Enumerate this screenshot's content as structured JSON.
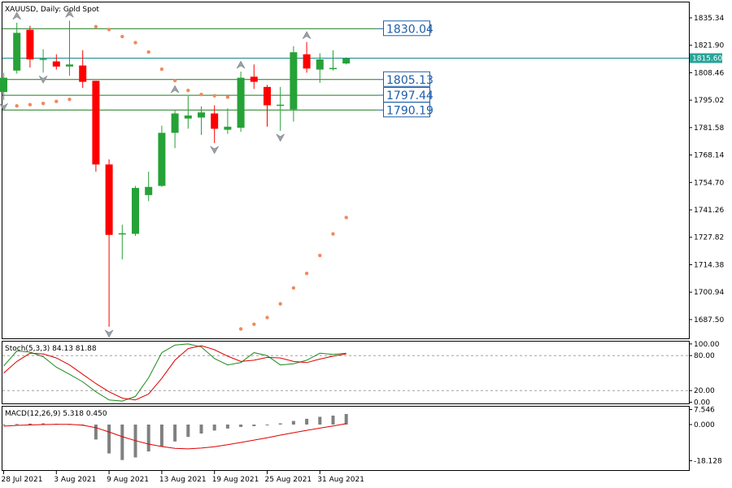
{
  "header": {
    "title": "XAUUSD, Daily:  Gold Spot"
  },
  "colors": {
    "bull": "#26a237",
    "bear": "#ff0000",
    "level_line": "#1e7a1e",
    "level_box": "#1f5fa8",
    "current_line": "#1a8a8a",
    "current_tag_bg": "#2aa39a",
    "sar": "#f08a5d",
    "fractal": "#9aa0a6",
    "stoch_main": "#1e8a1e",
    "stoch_signal": "#e00000",
    "macd_hist": "#808080",
    "macd_signal": "#e00000"
  },
  "levels": [
    {
      "label": "1830.04",
      "value": 1830.04
    },
    {
      "label": "1805.13",
      "value": 1805.13
    },
    {
      "label": "1797.44",
      "value": 1797.44
    },
    {
      "label": "1790.19",
      "value": 1790.19
    }
  ],
  "current_price": {
    "label": "1815.60",
    "value": 1815.6
  },
  "stoch": {
    "label": "Stoch(5,3,3) 84.13 81.88",
    "ticks": [
      "100.00",
      "80.00",
      "20.00",
      "0.00"
    ],
    "tick_values": [
      100,
      80,
      20,
      0
    ]
  },
  "macd": {
    "label": "MACD(12,26,9) 5.318 0.450",
    "ticks": [
      "7.546",
      "0.000",
      "-18.128"
    ],
    "tick_values": [
      7.546,
      0,
      -18.128
    ]
  },
  "chart_data": {
    "type": "candlestick",
    "symbol": "XAUUSD",
    "timeframe": "Daily",
    "y_ticks": [
      "1835.34",
      "1821.90",
      "1808.46",
      "1795.02",
      "1781.58",
      "1768.14",
      "1754.70",
      "1741.26",
      "1727.82",
      "1714.38",
      "1700.94",
      "1687.50"
    ],
    "y_tick_values": [
      1835.34,
      1821.9,
      1808.46,
      1795.02,
      1781.58,
      1768.14,
      1754.7,
      1741.26,
      1727.82,
      1714.38,
      1700.94,
      1687.5
    ],
    "ylim": [
      1678.3,
      1842.9
    ],
    "x_labels": [
      {
        "text": "28 Jul 2021",
        "index": 0
      },
      {
        "text": "3 Aug 2021",
        "index": 4
      },
      {
        "text": "9 Aug 2021",
        "index": 8
      },
      {
        "text": "13 Aug 2021",
        "index": 12
      },
      {
        "text": "19 Aug 2021",
        "index": 16
      },
      {
        "text": "25 Aug 2021",
        "index": 20
      },
      {
        "text": "31 Aug 2021",
        "index": 24
      }
    ],
    "candles": [
      {
        "o": 1799.0,
        "h": 1808.5,
        "l": 1795.0,
        "c": 1806.0
      },
      {
        "o": 1809.5,
        "h": 1833.0,
        "l": 1808.0,
        "c": 1828.0
      },
      {
        "o": 1829.5,
        "h": 1831.5,
        "l": 1811.0,
        "c": 1815.0
      },
      {
        "o": 1814.5,
        "h": 1820.0,
        "l": 1808.5,
        "c": 1815.0
      },
      {
        "o": 1814.0,
        "h": 1817.5,
        "l": 1810.0,
        "c": 1811.5
      },
      {
        "o": 1811.5,
        "h": 1834.0,
        "l": 1807.0,
        "c": 1812.5
      },
      {
        "o": 1812.0,
        "h": 1819.5,
        "l": 1801.0,
        "c": 1804.0
      },
      {
        "o": 1804.5,
        "h": 1804.5,
        "l": 1760.0,
        "c": 1763.5
      },
      {
        "o": 1763.5,
        "h": 1766.0,
        "l": 1684.0,
        "c": 1729.0
      },
      {
        "o": 1729.0,
        "h": 1734.0,
        "l": 1717.0,
        "c": 1729.5
      },
      {
        "o": 1729.5,
        "h": 1753.0,
        "l": 1728.5,
        "c": 1752.0
      },
      {
        "o": 1748.5,
        "h": 1760.0,
        "l": 1745.5,
        "c": 1752.5
      },
      {
        "o": 1753.0,
        "h": 1782.5,
        "l": 1752.5,
        "c": 1779.0
      },
      {
        "o": 1779.0,
        "h": 1790.0,
        "l": 1771.5,
        "c": 1788.5
      },
      {
        "o": 1786.0,
        "h": 1797.0,
        "l": 1781.0,
        "c": 1787.5
      },
      {
        "o": 1786.5,
        "h": 1792.0,
        "l": 1778.0,
        "c": 1789.0
      },
      {
        "o": 1788.5,
        "h": 1792.5,
        "l": 1774.0,
        "c": 1781.0
      },
      {
        "o": 1780.5,
        "h": 1791.0,
        "l": 1778.5,
        "c": 1782.0
      },
      {
        "o": 1781.5,
        "h": 1809.0,
        "l": 1779.5,
        "c": 1806.0
      },
      {
        "o": 1806.5,
        "h": 1812.5,
        "l": 1800.5,
        "c": 1804.0
      },
      {
        "o": 1801.5,
        "h": 1802.5,
        "l": 1782.0,
        "c": 1792.5
      },
      {
        "o": 1792.0,
        "h": 1801.5,
        "l": 1780.0,
        "c": 1792.5
      },
      {
        "o": 1790.5,
        "h": 1821.5,
        "l": 1784.5,
        "c": 1818.5
      },
      {
        "o": 1817.5,
        "h": 1823.5,
        "l": 1808.5,
        "c": 1810.5
      },
      {
        "o": 1810.0,
        "h": 1818.0,
        "l": 1803.5,
        "c": 1815.0
      },
      {
        "o": 1810.5,
        "h": 1819.5,
        "l": 1809.5,
        "c": 1810.5
      },
      {
        "o": 1813.0,
        "h": 1816.0,
        "l": 1812.5,
        "c": 1815.5
      }
    ],
    "parabolic_sar": [
      {
        "i": 0,
        "v": 1791.5
      },
      {
        "i": 1,
        "v": 1792.2
      },
      {
        "i": 2,
        "v": 1792.8
      },
      {
        "i": 3,
        "v": 1793.4
      },
      {
        "i": 4,
        "v": 1794.4
      },
      {
        "i": 5,
        "v": 1795.4
      },
      {
        "i": 7,
        "v": 1831.0
      },
      {
        "i": 8,
        "v": 1829.6
      },
      {
        "i": 9,
        "v": 1826.2
      },
      {
        "i": 10,
        "v": 1823.2
      },
      {
        "i": 11,
        "v": 1818.6
      },
      {
        "i": 12,
        "v": 1810.2
      },
      {
        "i": 13,
        "v": 1804.6
      },
      {
        "i": 14,
        "v": 1799.8
      },
      {
        "i": 15,
        "v": 1797.8
      },
      {
        "i": 16,
        "v": 1797.2
      },
      {
        "i": 17,
        "v": 1796.5
      },
      {
        "i": 18,
        "v": 1682.9
      },
      {
        "i": 19,
        "v": 1685.2
      },
      {
        "i": 20,
        "v": 1688.5
      },
      {
        "i": 21,
        "v": 1695.2
      },
      {
        "i": 22,
        "v": 1703.0
      },
      {
        "i": 23,
        "v": 1710.1
      },
      {
        "i": 24,
        "v": 1718.9
      },
      {
        "i": 25,
        "v": 1729.5
      },
      {
        "i": 26,
        "v": 1737.5
      }
    ],
    "fractals_up": [
      {
        "i": 1,
        "v": 1833.0
      },
      {
        "i": 5,
        "v": 1834.0
      },
      {
        "i": 13,
        "v": 1797.0
      },
      {
        "i": 18,
        "v": 1809.0
      },
      {
        "i": 23,
        "v": 1823.5
      }
    ],
    "fractals_down": [
      {
        "i": 0,
        "v": 1795.0
      },
      {
        "i": 3,
        "v": 1808.5
      },
      {
        "i": 8,
        "v": 1684.0
      },
      {
        "i": 16,
        "v": 1774.0
      },
      {
        "i": 21,
        "v": 1780.0
      }
    ],
    "stoch_main": [
      62,
      88,
      86,
      78,
      60,
      48,
      35,
      18,
      4,
      2,
      10,
      42,
      85,
      98,
      100,
      95,
      75,
      64,
      68,
      85,
      80,
      64,
      66,
      72,
      84,
      82,
      84
    ],
    "stoch_signal": [
      50,
      70,
      84,
      83,
      76,
      64,
      48,
      32,
      18,
      7,
      4,
      14,
      41,
      72,
      92,
      97,
      90,
      79,
      70,
      72,
      77,
      76,
      70,
      68,
      74,
      79,
      83
    ],
    "macd_hist": [
      -0.2,
      0.3,
      0.5,
      0.6,
      0.4,
      0.3,
      -0.5,
      -7.5,
      -14.5,
      -17.8,
      -16.5,
      -13.5,
      -11.0,
      -8.5,
      -6.2,
      -4.5,
      -3.0,
      -2.0,
      -1.2,
      -0.8,
      -0.2,
      0.6,
      1.8,
      2.9,
      3.9,
      4.5,
      5.3
    ],
    "macd_signal": [
      -0.8,
      -0.4,
      -0.2,
      0.0,
      0.1,
      0.1,
      -0.3,
      -1.6,
      -3.7,
      -6.1,
      -8.1,
      -9.8,
      -11.0,
      -11.9,
      -12.2,
      -11.8,
      -11.1,
      -10.1,
      -9.0,
      -7.8,
      -6.6,
      -5.3,
      -4.1,
      -2.9,
      -1.8,
      -0.7,
      0.45
    ]
  }
}
